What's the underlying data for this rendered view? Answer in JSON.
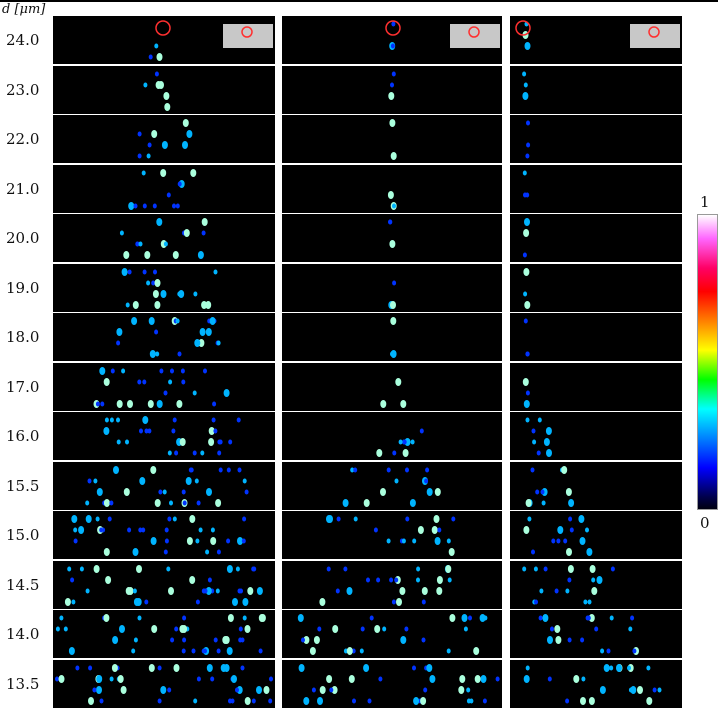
{
  "figure": {
    "y_axis_label": "d [μm]",
    "rows": [
      "24.0",
      "23.0",
      "22.0",
      "21.0",
      "20.0",
      "19.0",
      "18.0",
      "17.0",
      "16.0",
      "15.5",
      "15.0",
      "14.5",
      "14.0",
      "13.5"
    ],
    "columns": 3,
    "colorbar": {
      "max_label": "1",
      "min_label": "0"
    },
    "colors": {
      "background": "#000000",
      "marker": "#ff3030",
      "dot_low": "#0033ff",
      "dot_high": "#aaffdd"
    }
  }
}
